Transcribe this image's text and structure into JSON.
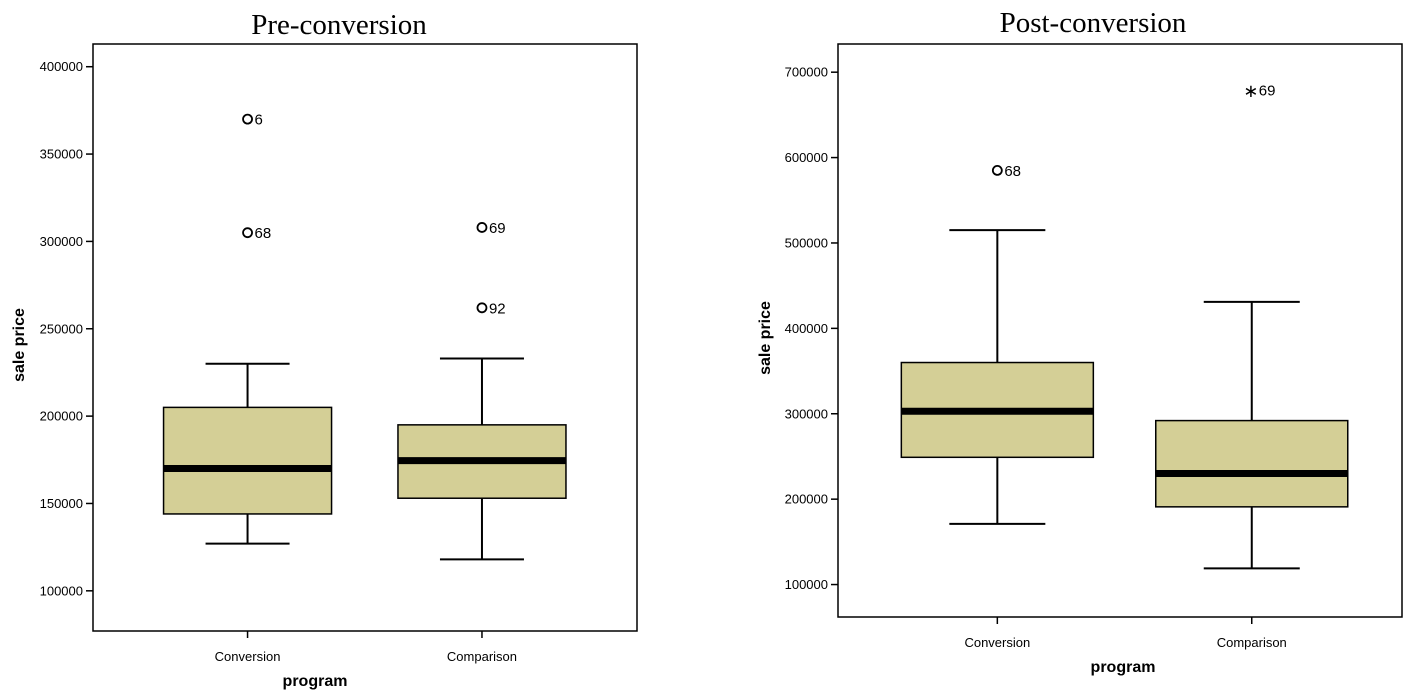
{
  "chart_data": [
    {
      "type": "box",
      "title": "Pre-conversion",
      "xlabel": "program",
      "ylabel": "sale price",
      "categories": [
        "Conversion",
        "Comparison"
      ],
      "ylim": [
        77000,
        413000
      ],
      "yticks": [
        100000,
        150000,
        200000,
        250000,
        300000,
        350000,
        400000
      ],
      "ytick_labels": [
        "100000",
        "150000",
        "200000",
        "250000",
        "300000",
        "350000",
        "400000"
      ],
      "box_color": "#d4cf96",
      "boxes": [
        {
          "category": "Conversion",
          "whisker_low": 127000,
          "q1": 144000,
          "median": 170000,
          "q3": 205000,
          "whisker_high": 230000,
          "outliers": [
            {
              "value": 370000,
              "label": "6",
              "marker": "circle"
            },
            {
              "value": 305000,
              "label": "68",
              "marker": "circle"
            }
          ]
        },
        {
          "category": "Comparison",
          "whisker_low": 118000,
          "q1": 153000,
          "median": 174500,
          "q3": 195000,
          "whisker_high": 233000,
          "outliers": [
            {
              "value": 308000,
              "label": "69",
              "marker": "circle"
            },
            {
              "value": 262000,
              "label": "92",
              "marker": "circle"
            }
          ]
        }
      ]
    },
    {
      "type": "box",
      "title": "Post-conversion",
      "xlabel": "program",
      "ylabel": "sale price",
      "categories": [
        "Conversion",
        "Comparison"
      ],
      "ylim": [
        62000,
        733000
      ],
      "yticks": [
        100000,
        200000,
        300000,
        400000,
        500000,
        600000,
        700000
      ],
      "ytick_labels": [
        "100000",
        "200000",
        "300000",
        "400000",
        "500000",
        "600000",
        "700000"
      ],
      "box_color": "#d4cf96",
      "boxes": [
        {
          "category": "Conversion",
          "whisker_low": 171000,
          "q1": 249000,
          "median": 303000,
          "q3": 360000,
          "whisker_high": 515000,
          "outliers": [
            {
              "value": 585000,
              "label": "68",
              "marker": "circle"
            }
          ]
        },
        {
          "category": "Comparison",
          "whisker_low": 119000,
          "q1": 191000,
          "median": 230000,
          "q3": 292000,
          "whisker_high": 431000,
          "outliers": [
            {
              "value": 679000,
              "label": "69",
              "marker": "star"
            }
          ]
        }
      ]
    }
  ]
}
